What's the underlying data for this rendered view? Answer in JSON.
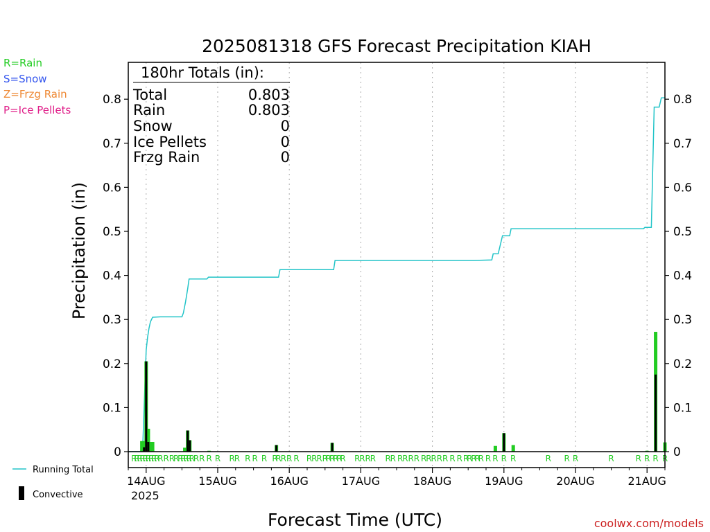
{
  "title": "2025081318 GFS Forecast Precipitation KIAH",
  "legend_types": [
    {
      "text": "R=Rain",
      "color": "#22cc22"
    },
    {
      "text": "S=Snow",
      "color": "#3355ee"
    },
    {
      "text": "Z=Frzg Rain",
      "color": "#ee8833"
    },
    {
      "text": "P=Ice Pellets",
      "color": "#e0208a"
    }
  ],
  "totals_box": {
    "header": "180hr Totals (in):",
    "rows": [
      {
        "label": "Total",
        "value": "0.803"
      },
      {
        "label": "Rain",
        "value": "0.803"
      },
      {
        "label": "Snow",
        "value": "0"
      },
      {
        "label": "Ice Pellets",
        "value": "0"
      },
      {
        "label": "Frzg Rain",
        "value": "0"
      }
    ]
  },
  "ylabel": "Precipitation (in)",
  "xlabel": "Forecast Time (UTC)",
  "watermark": "coolwx.com/models",
  "bottom_legend": {
    "running_total": "Running Total",
    "convective": "Convective"
  },
  "year_label": "2025",
  "colors": {
    "running_total": "#22c4c8",
    "rain": "#22cc22",
    "convective": "#000000",
    "grid": "#aaaaaa",
    "watermark": "#cc2222"
  },
  "chart_data": {
    "type": "bar",
    "title": "2025081318 GFS Forecast Precipitation KIAH",
    "ylabel": "Precipitation (in)",
    "xlabel": "Forecast Time (UTC)",
    "ylim": [
      0,
      0.88
    ],
    "xlim": [
      -0.25,
      7.25
    ],
    "yticks": [
      0,
      0.1,
      0.2,
      0.3,
      0.4,
      0.5,
      0.6,
      0.7,
      0.8
    ],
    "ytick_labels": [
      "0",
      "0.1",
      "0.2",
      "0.3",
      "0.4",
      "0.5",
      "0.6",
      "0.7",
      "0.8"
    ],
    "xticks": [
      0,
      1,
      2,
      3,
      4,
      5,
      6,
      7
    ],
    "xtick_labels": [
      "14AUG",
      "15AUG",
      "16AUG",
      "17AUG",
      "18AUG",
      "19AUG",
      "20AUG",
      "21AUG"
    ],
    "grid": true,
    "running_total": {
      "name": "Running Total",
      "x": [
        -0.25,
        -0.05,
        0.0,
        0.02,
        0.04,
        0.06,
        0.09,
        0.2,
        0.5,
        0.52,
        0.55,
        0.58,
        0.6,
        0.85,
        0.87,
        1.85,
        1.87,
        2.62,
        2.64,
        4.58,
        4.83,
        4.85,
        4.9,
        4.92,
        4.98,
        5.0,
        5.08,
        5.1,
        5.1,
        6.95,
        6.97,
        7.06,
        7.1,
        7.15,
        7.17,
        7.2,
        7.25
      ],
      "y": [
        0.0,
        0.0,
        0.23,
        0.26,
        0.28,
        0.295,
        0.305,
        0.306,
        0.306,
        0.315,
        0.34,
        0.37,
        0.392,
        0.392,
        0.396,
        0.396,
        0.413,
        0.413,
        0.434,
        0.434,
        0.435,
        0.449,
        0.449,
        0.449,
        0.49,
        0.49,
        0.49,
        0.506,
        0.506,
        0.506,
        0.509,
        0.509,
        0.782,
        0.782,
        0.782,
        0.803,
        0.803
      ]
    },
    "precip_bars": {
      "name": "Rain",
      "x": [
        -0.06,
        -0.03,
        0.0,
        0.03,
        0.06,
        0.09,
        0.54,
        0.58,
        0.61,
        0.88,
        1.82,
        2.6,
        4.88,
        5.0,
        5.13,
        7.0,
        7.12,
        7.25
      ],
      "values": [
        0.024,
        0.024,
        0.205,
        0.052,
        0.022,
        0.022,
        0.009,
        0.048,
        0.026,
        0.002,
        0.015,
        0.02,
        0.013,
        0.042,
        0.015,
        0.002,
        0.272,
        0.021
      ]
    },
    "convective_bars": {
      "name": "Convective",
      "x": [
        -0.03,
        0.0,
        0.03,
        0.58,
        0.61,
        1.82,
        2.6,
        5.0,
        7.12
      ],
      "values": [
        0.01,
        0.205,
        0.022,
        0.048,
        0.026,
        0.015,
        0.02,
        0.042,
        0.175
      ]
    },
    "ptype_markers": {
      "label": "R",
      "x": [
        -0.17,
        -0.13,
        -0.09,
        -0.05,
        -0.01,
        0.03,
        0.07,
        0.11,
        0.15,
        0.2,
        0.28,
        0.36,
        0.42,
        0.48,
        0.52,
        0.56,
        0.6,
        0.64,
        0.7,
        0.78,
        0.88,
        1.0,
        1.2,
        1.27,
        1.42,
        1.52,
        1.65,
        1.8,
        1.85,
        1.92,
        2.0,
        2.1,
        2.28,
        2.35,
        2.42,
        2.5,
        2.55,
        2.6,
        2.65,
        2.7,
        2.75,
        2.95,
        3.02,
        3.1,
        3.17,
        3.38,
        3.45,
        3.55,
        3.62,
        3.7,
        3.78,
        3.88,
        3.95,
        4.02,
        4.1,
        4.18,
        4.28,
        4.38,
        4.47,
        4.52,
        4.58,
        4.63,
        4.68,
        4.78,
        4.88,
        5.0,
        5.13,
        5.62,
        5.88,
        6.0,
        6.5,
        6.88,
        7.0,
        7.12,
        7.25
      ]
    }
  }
}
